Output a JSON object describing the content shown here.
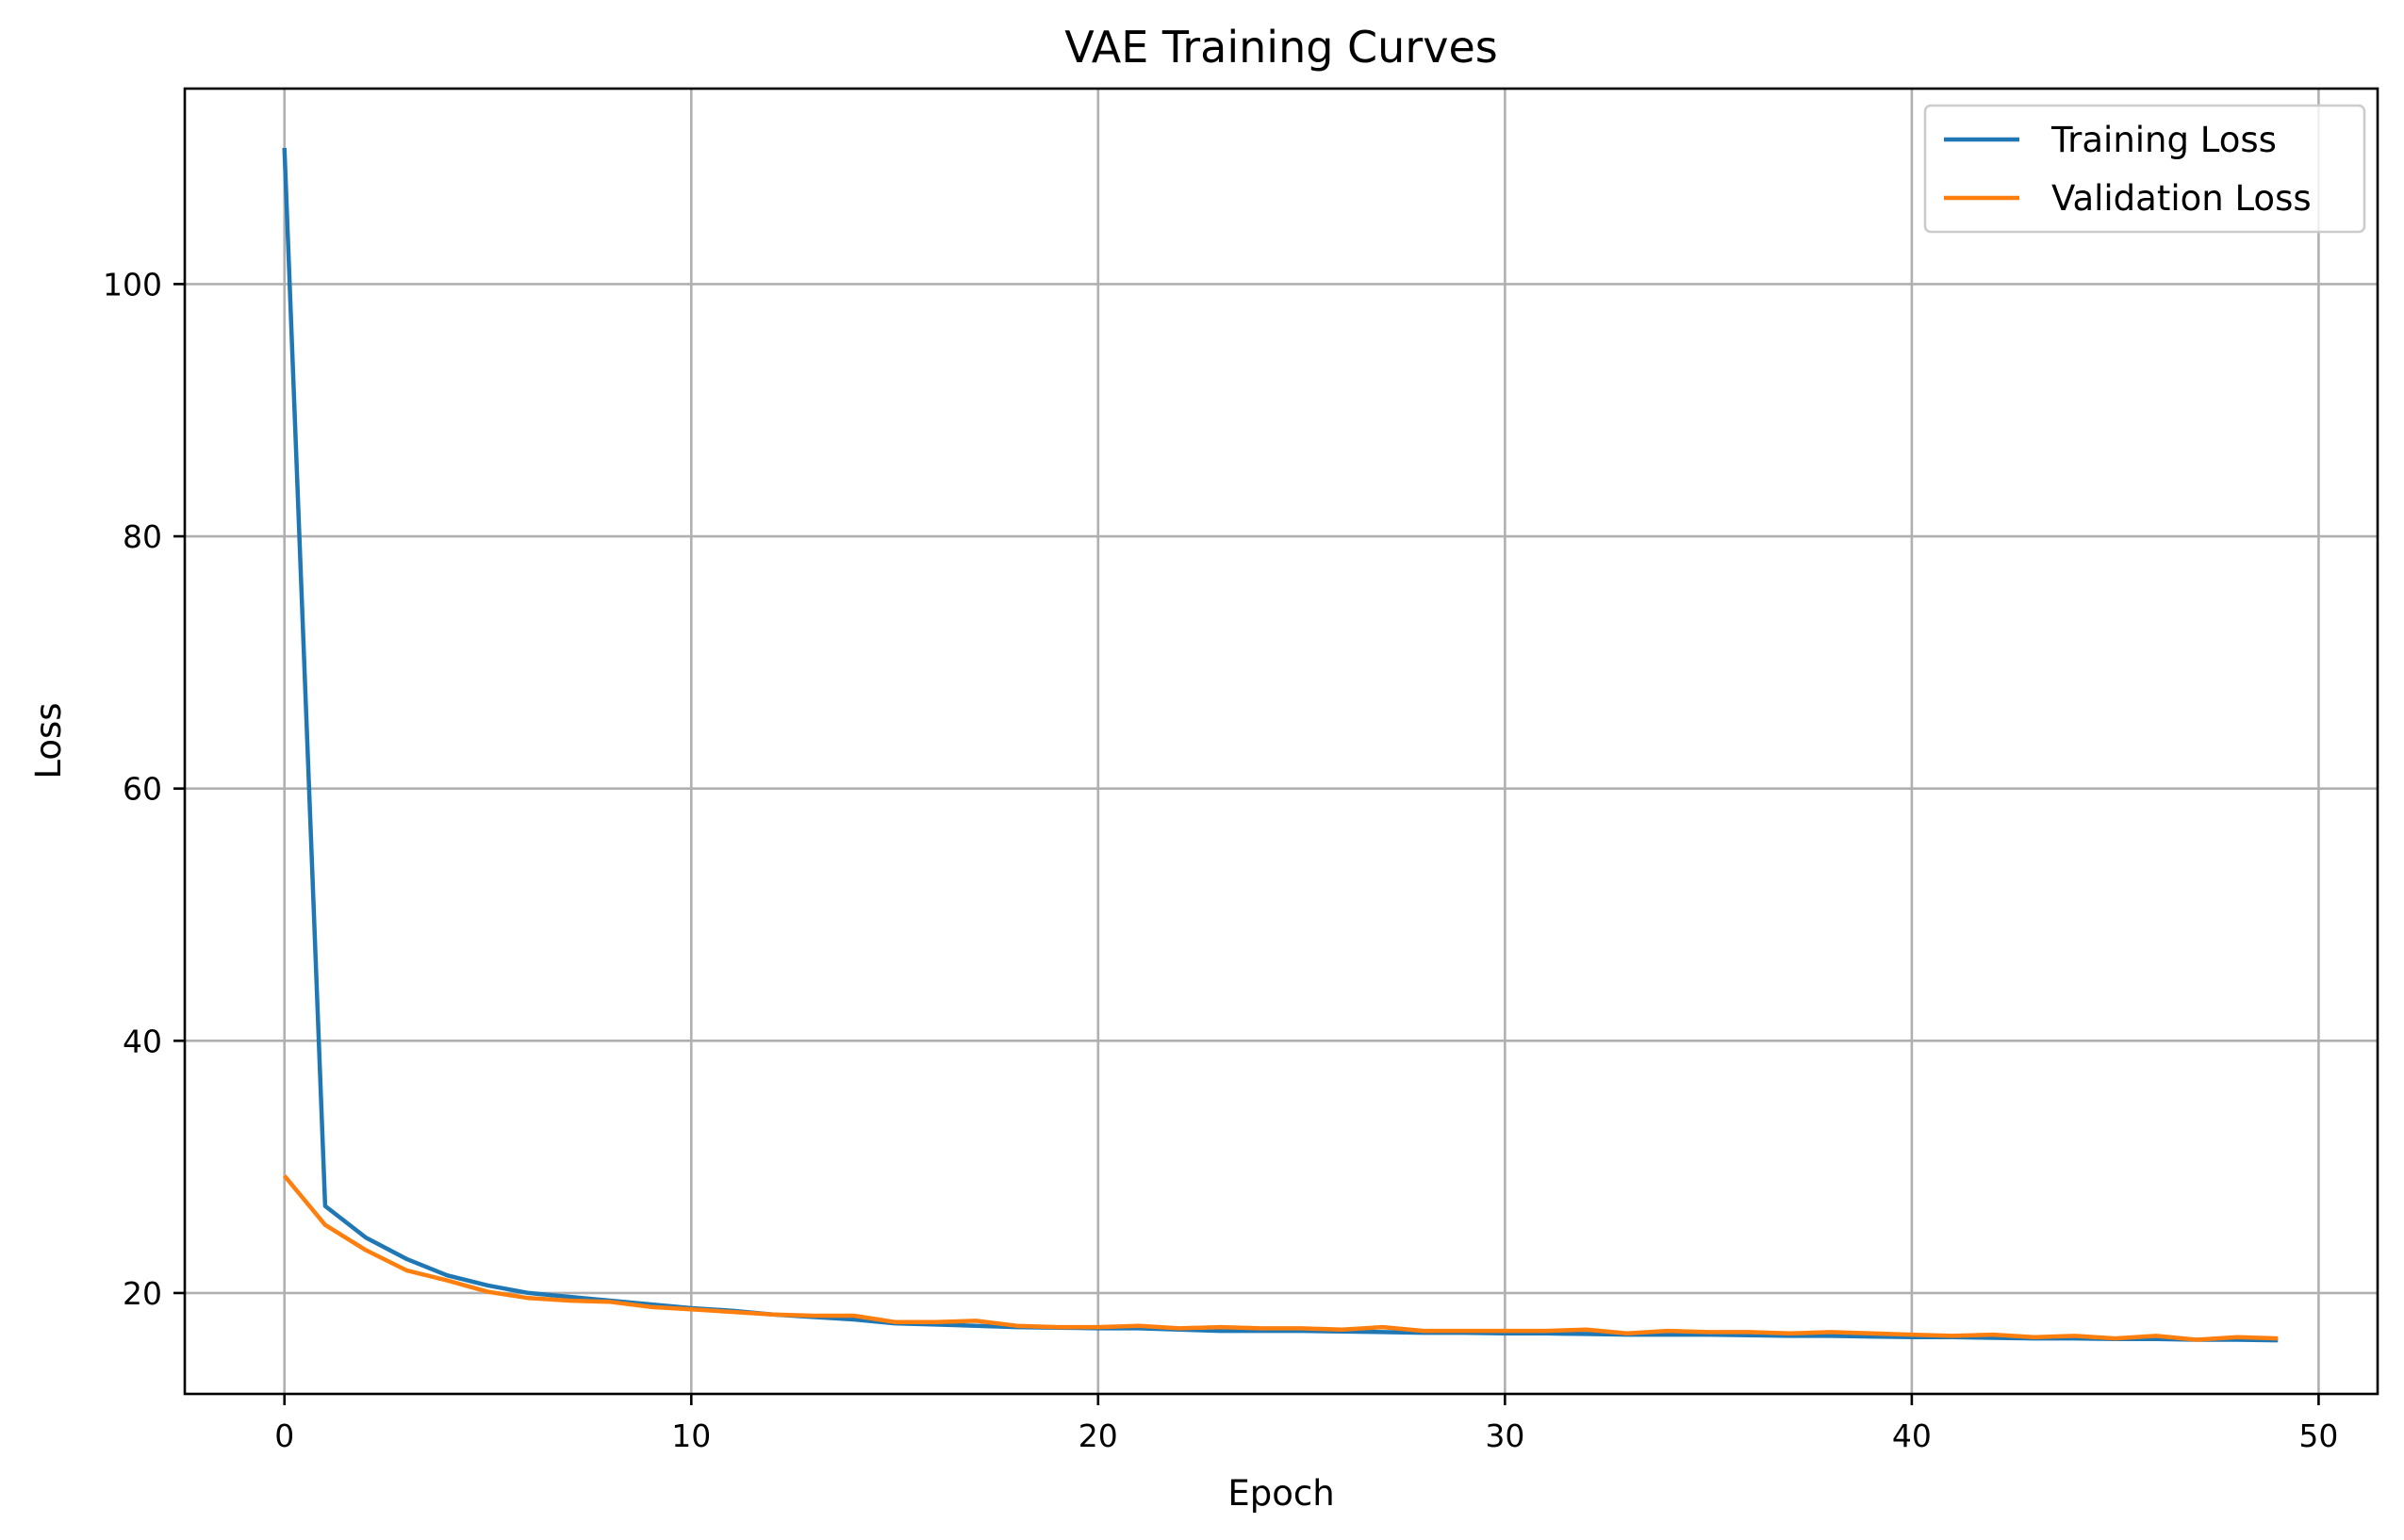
{
  "chart_data": {
    "type": "line",
    "title": "VAE Training Curves",
    "xlabel": "Epoch",
    "ylabel": "Loss",
    "xlim": [
      -2.45,
      51.45
    ],
    "ylim": [
      12.0,
      115.5
    ],
    "xticks": [
      0,
      10,
      20,
      30,
      40,
      50
    ],
    "yticks": [
      20,
      40,
      60,
      80,
      100
    ],
    "grid": true,
    "legend_position": "top-right",
    "x": [
      0,
      1,
      2,
      3,
      4,
      5,
      6,
      7,
      8,
      9,
      10,
      11,
      12,
      13,
      14,
      15,
      16,
      17,
      18,
      19,
      20,
      21,
      22,
      23,
      24,
      25,
      26,
      27,
      28,
      29,
      30,
      31,
      32,
      33,
      34,
      35,
      36,
      37,
      38,
      39,
      40,
      41,
      42,
      43,
      44,
      45,
      46,
      47,
      48,
      49
    ],
    "series": [
      {
        "name": "Training Loss",
        "color": "#1f77b4",
        "values": [
          110.8,
          26.9,
          24.4,
          22.7,
          21.4,
          20.6,
          20.0,
          19.7,
          19.4,
          19.1,
          18.8,
          18.6,
          18.3,
          18.1,
          17.9,
          17.6,
          17.5,
          17.4,
          17.3,
          17.25,
          17.2,
          17.2,
          17.1,
          17.0,
          17.0,
          17.0,
          16.95,
          16.9,
          16.85,
          16.85,
          16.8,
          16.8,
          16.75,
          16.7,
          16.7,
          16.7,
          16.65,
          16.6,
          16.6,
          16.55,
          16.5,
          16.5,
          16.45,
          16.4,
          16.4,
          16.35,
          16.35,
          16.3,
          16.3,
          16.25
        ]
      },
      {
        "name": "Validation Loss",
        "color": "#ff7f0e",
        "values": [
          29.3,
          25.4,
          23.4,
          21.8,
          21.0,
          20.1,
          19.6,
          19.4,
          19.3,
          18.9,
          18.7,
          18.5,
          18.3,
          18.2,
          18.2,
          17.7,
          17.7,
          17.8,
          17.4,
          17.3,
          17.3,
          17.4,
          17.2,
          17.3,
          17.2,
          17.2,
          17.1,
          17.3,
          17.0,
          17.0,
          17.0,
          17.0,
          17.1,
          16.8,
          17.0,
          16.9,
          16.9,
          16.8,
          16.9,
          16.8,
          16.7,
          16.6,
          16.7,
          16.5,
          16.6,
          16.4,
          16.6,
          16.3,
          16.5,
          16.4
        ]
      }
    ]
  }
}
